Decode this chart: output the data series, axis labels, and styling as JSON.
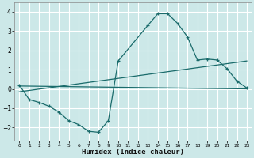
{
  "bg_color": "#cce8e8",
  "grid_color": "#ffffff",
  "line_color": "#1a6b6b",
  "xlabel": "Humidex (Indice chaleur)",
  "ylim": [
    -2.7,
    4.5
  ],
  "xlim": [
    -0.5,
    23.5
  ],
  "yticks": [
    -2,
    -1,
    0,
    1,
    2,
    3,
    4
  ],
  "xticks": [
    0,
    1,
    2,
    3,
    4,
    5,
    6,
    7,
    8,
    9,
    10,
    11,
    12,
    13,
    14,
    15,
    16,
    17,
    18,
    19,
    20,
    21,
    22,
    23
  ],
  "curve1_x": [
    0,
    1,
    2,
    3,
    4,
    5,
    6,
    7,
    8,
    9,
    10,
    13,
    14,
    15,
    16,
    17,
    18,
    19,
    20,
    21,
    22,
    23
  ],
  "curve1_y": [
    0.2,
    -0.55,
    -0.7,
    -0.9,
    -1.2,
    -1.65,
    -1.85,
    -2.2,
    -2.25,
    -1.65,
    1.45,
    3.3,
    3.9,
    3.9,
    3.4,
    2.7,
    1.5,
    1.55,
    1.5,
    1.05,
    0.4,
    0.05
  ],
  "line1_x": [
    0,
    23
  ],
  "line1_y": [
    0.15,
    0.0
  ],
  "line2_x": [
    0,
    23
  ],
  "line2_y": [
    -0.15,
    1.45
  ]
}
